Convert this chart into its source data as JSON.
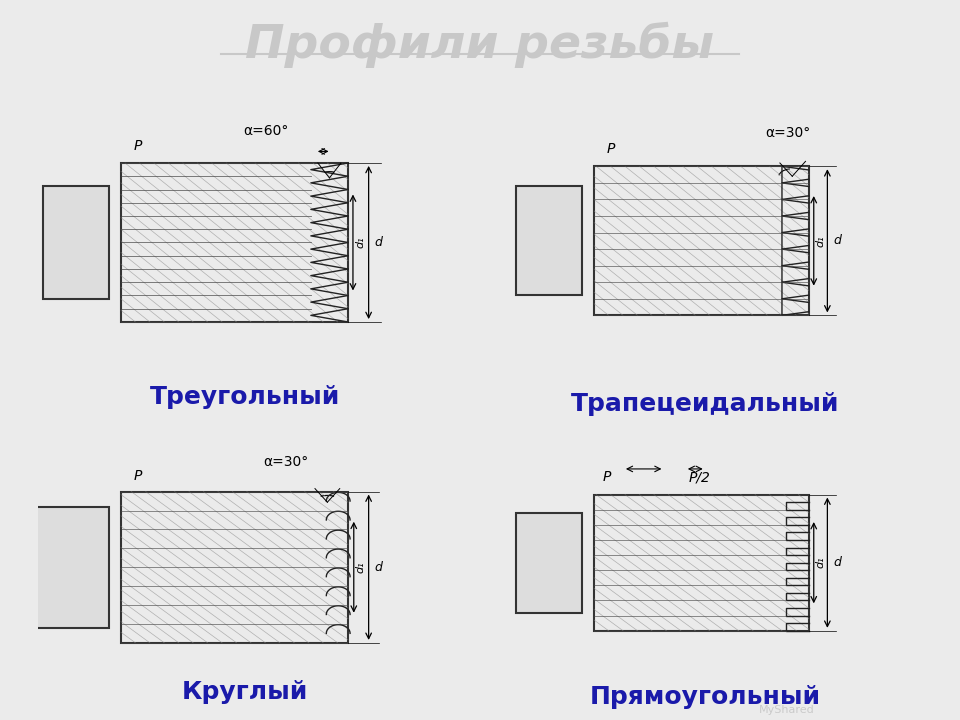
{
  "title": "Профили резьбы",
  "title_color": "#c8c8c8",
  "title_fontsize": 34,
  "bg_color": "#ebebeb",
  "labels": {
    "top_left": "Треугольный",
    "top_right": "Трапецеидальный",
    "bot_left": "Круглый",
    "bot_right": "Прямоугольный"
  },
  "label_color": "#1a1aaa",
  "label_fontsize": 18,
  "watermark": "MyShared"
}
